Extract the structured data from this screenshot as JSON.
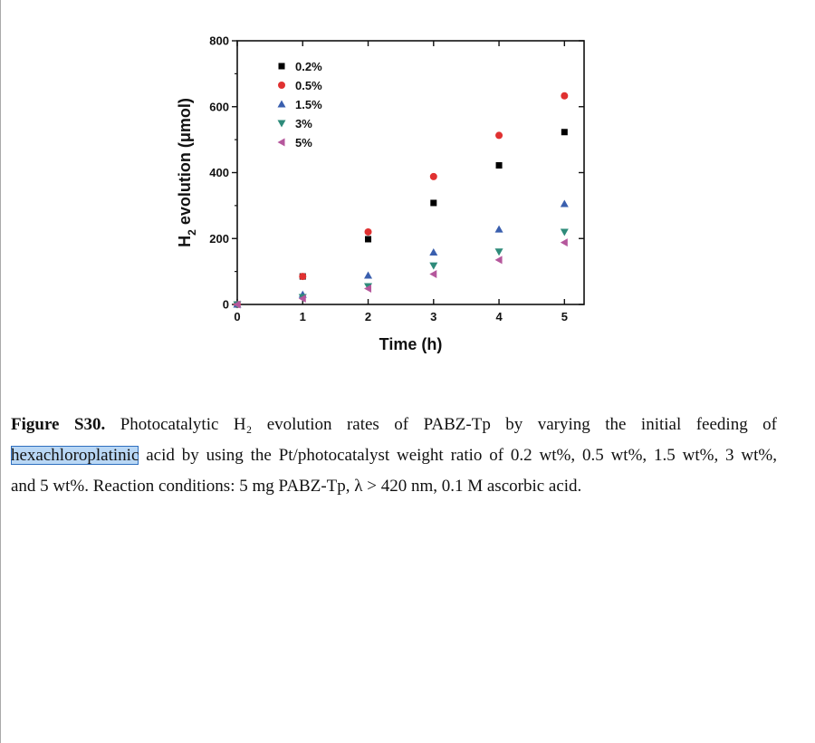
{
  "chart_data": {
    "type": "scatter",
    "xlabel": "Time (h)",
    "ylabel": "H2 evolution (μmol)",
    "ylabel_main": "H",
    "ylabel_sub": "2",
    "ylabel_rest": " evolution (μmol)",
    "xlim": [
      0,
      5.3
    ],
    "ylim": [
      0,
      800
    ],
    "x_ticks": [
      0,
      1,
      2,
      3,
      4,
      5
    ],
    "y_ticks": [
      0,
      200,
      400,
      600,
      800
    ],
    "legend_position": "top-left",
    "series": [
      {
        "name": "0.2%",
        "marker": "square",
        "color": "#000000",
        "x": [
          0,
          1,
          2,
          3,
          4,
          5
        ],
        "y": [
          0,
          85,
          198,
          308,
          422,
          523
        ]
      },
      {
        "name": "0.5%",
        "marker": "circle",
        "color": "#e03131",
        "x": [
          0,
          1,
          2,
          3,
          4,
          5
        ],
        "y": [
          0,
          85,
          220,
          388,
          513,
          633
        ]
      },
      {
        "name": "1.5%",
        "marker": "triangle-up",
        "color": "#3a5fae",
        "x": [
          0,
          1,
          2,
          3,
          4,
          5
        ],
        "y": [
          0,
          30,
          88,
          158,
          228,
          305
        ]
      },
      {
        "name": "3%",
        "marker": "triangle-down",
        "color": "#2e8b7a",
        "x": [
          0,
          1,
          2,
          3,
          4,
          5
        ],
        "y": [
          0,
          22,
          55,
          118,
          160,
          220
        ]
      },
      {
        "name": "5%",
        "marker": "triangle-left",
        "color": "#b5579c",
        "x": [
          0,
          1,
          2,
          3,
          4,
          5
        ],
        "y": [
          0,
          18,
          48,
          92,
          135,
          188
        ]
      }
    ]
  },
  "caption": {
    "label": "Figure S30.",
    "line1": " Photocatalytic H₂ evolution rates of PABZ-Tp by varying the initial feeding of",
    "highlight": "hexachloroplatinic",
    "line2": " acid by using the Pt/photocatalyst weight ratio of 0.2 wt%, 0.5 wt%, 1.5 wt%, 3 wt%,",
    "line3": "and 5 wt%. Reaction conditions: 5 mg PABZ-Tp, λ > 420 nm, 0.1 M ascorbic acid."
  }
}
